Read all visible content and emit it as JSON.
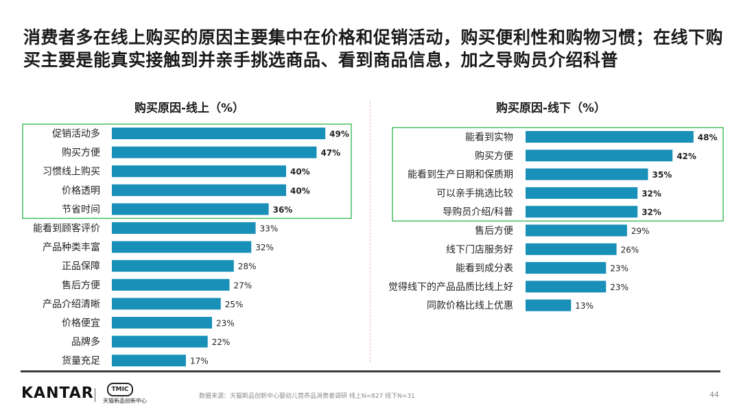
{
  "title": "消费者多在线上购买的原因主要集中在价格和促销活动，购买便利性和购物习惯；在线下购买主要是能真实接触到并亲手挑选商品、看到商品信息，加之导购员介绍科普",
  "colors": {
    "bar": "#1890b8",
    "highlight_box": "#2db34a",
    "divider": "#f2b8c0"
  },
  "chart_data": [
    {
      "type": "bar",
      "orientation": "horizontal",
      "title": "购买原因-线上（%）",
      "categories": [
        "促销活动多",
        "购买方便",
        "习惯线上购买",
        "价格透明",
        "节省时间",
        "能看到顾客评价",
        "产品种类丰富",
        "正品保障",
        "售后方便",
        "产品介绍清晰",
        "价格便宜",
        "品牌多",
        "货量充足"
      ],
      "values": [
        49,
        47,
        40,
        40,
        36,
        33,
        32,
        28,
        27,
        25,
        23,
        22,
        17
      ],
      "value_labels": [
        "49%",
        "47%",
        "40%",
        "40%",
        "36%",
        "33%",
        "32%",
        "28%",
        "27%",
        "25%",
        "23%",
        "22%",
        "17%"
      ],
      "highlighted_count": 5,
      "xlim": [
        0,
        100
      ]
    },
    {
      "type": "bar",
      "orientation": "horizontal",
      "title": "购买原因-线下（%）",
      "categories": [
        "能看到实物",
        "购买方便",
        "能看到生产日期和保质期",
        "可以亲手挑选比较",
        "导购员介绍/科普",
        "售后方便",
        "线下门店服务好",
        "能看到成分表",
        "觉得线下的产品品质比线上好",
        "同款价格比线上优惠"
      ],
      "values": [
        48,
        42,
        35,
        32,
        32,
        29,
        26,
        23,
        23,
        13
      ],
      "value_labels": [
        "48%",
        "42%",
        "35%",
        "32%",
        "32%",
        "29%",
        "26%",
        "23%",
        "23%",
        "13%"
      ],
      "highlighted_count": 5,
      "xlim": [
        0,
        100
      ]
    }
  ],
  "footer": {
    "kantar": "KANTAR",
    "tmic_badge": "TMIC",
    "tmic_name": "天猫新品创新中心",
    "source": "数据来源：天猫新品创新中心婴幼儿营养品消费者调研 线上N=827 线下N=31",
    "page": "44"
  }
}
